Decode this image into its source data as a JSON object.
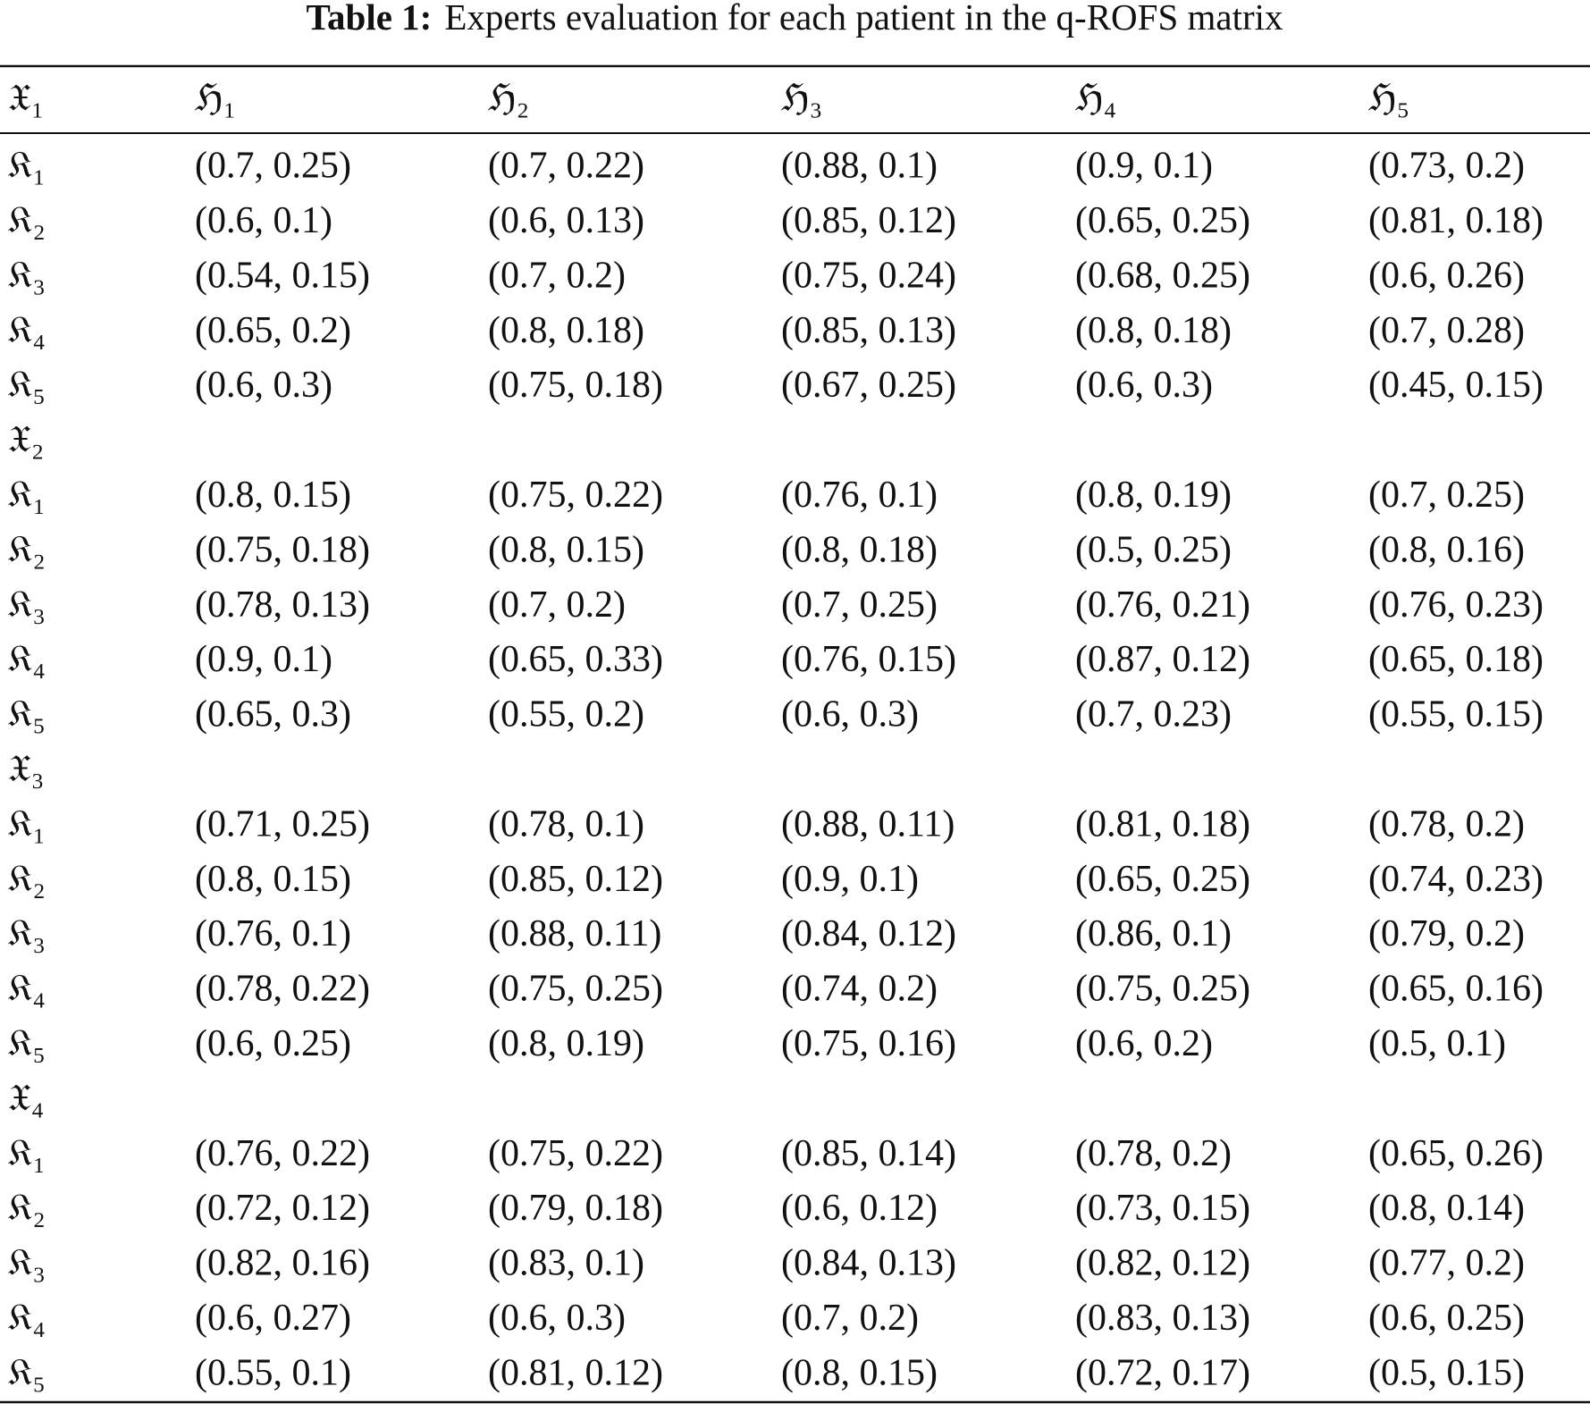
{
  "header": {
    "title_label": "Table 1:",
    "title": "Experts evaluation for each patient in the q-ROFS matrix"
  },
  "table": {
    "header": [
      "𝔛₁",
      "ℌ₁",
      "ℌ₂",
      "ℌ₃",
      "ℌ₄",
      "ℌ₅"
    ],
    "rows": [
      [
        "𝔎₁",
        "(0.7, 0.25)",
        "(0.7, 0.22)",
        "(0.88, 0.1)",
        "(0.9, 0.1)",
        "(0.73, 0.2)"
      ],
      [
        "𝔎₂",
        "(0.6, 0.1)",
        "(0.6, 0.13)",
        "(0.85, 0.12)",
        "(0.65, 0.25)",
        "(0.81, 0.18)"
      ],
      [
        "𝔎₃",
        "(0.54, 0.15)",
        "(0.7, 0.2)",
        "(0.75, 0.24)",
        "(0.68, 0.25)",
        "(0.6, 0.26)"
      ],
      [
        "𝔎₄",
        "(0.65, 0.2)",
        "(0.8, 0.18)",
        "(0.85, 0.13)",
        "(0.8, 0.18)",
        "(0.7, 0.28)"
      ],
      [
        "𝔎₅",
        "(0.6, 0.3)",
        "(0.75, 0.18)",
        "(0.67, 0.25)",
        "(0.6, 0.3)",
        "(0.45, 0.15)"
      ],
      [
        "𝔛₂"
      ],
      [
        "𝔎₁",
        "(0.8, 0.15)",
        "(0.75, 0.22)",
        "(0.76, 0.1)",
        "(0.8, 0.19)",
        "(0.7, 0.25)"
      ],
      [
        "𝔎₂",
        "(0.75, 0.18)",
        "(0.8, 0.15)",
        "(0.8, 0.18)",
        "(0.5, 0.25)",
        "(0.8, 0.16)"
      ],
      [
        "𝔎₃",
        "(0.78, 0.13)",
        "(0.7, 0.2)",
        "(0.7, 0.25)",
        "(0.76, 0.21)",
        "(0.76, 0.23)"
      ],
      [
        "𝔎₄",
        "(0.9, 0.1)",
        "(0.65, 0.33)",
        "(0.76, 0.15)",
        "(0.87, 0.12)",
        "(0.65, 0.18)"
      ],
      [
        "𝔎₅",
        "(0.65, 0.3)",
        "(0.55, 0.2)",
        "(0.6, 0.3)",
        "(0.7, 0.23)",
        "(0.55, 0.15)"
      ],
      [
        "𝔛₃"
      ],
      [
        "𝔎₁",
        "(0.71, 0.25)",
        "(0.78, 0.1)",
        "(0.88, 0.11)",
        "(0.81, 0.18)",
        "(0.78, 0.2)"
      ],
      [
        "𝔎₂",
        "(0.8, 0.15)",
        "(0.85, 0.12)",
        "(0.9, 0.1)",
        "(0.65, 0.25)",
        "(0.74, 0.23)"
      ],
      [
        "𝔎₃",
        "(0.76, 0.1)",
        "(0.88, 0.11)",
        "(0.84, 0.12)",
        "(0.86, 0.1)",
        "(0.79, 0.2)"
      ],
      [
        "𝔎₄",
        "(0.78, 0.22)",
        "(0.75, 0.25)",
        "(0.74, 0.2)",
        "(0.75, 0.25)",
        "(0.65, 0.16)"
      ],
      [
        "𝔎₅",
        "(0.6, 0.25)",
        "(0.8, 0.19)",
        "(0.75, 0.16)",
        "(0.6, 0.2)",
        "(0.5, 0.1)"
      ],
      [
        "𝔛₄"
      ],
      [
        "𝔎₁",
        "(0.76, 0.22)",
        "(0.75, 0.22)",
        "(0.85, 0.14)",
        "(0.78, 0.2)",
        "(0.65, 0.26)"
      ],
      [
        "𝔎₂",
        "(0.72, 0.12)",
        "(0.79, 0.18)",
        "(0.6, 0.12)",
        "(0.73, 0.15)",
        "(0.8, 0.14)"
      ],
      [
        "𝔎₃",
        "(0.82, 0.16)",
        "(0.83, 0.1)",
        "(0.84, 0.13)",
        "(0.82, 0.12)",
        "(0.77, 0.2)"
      ],
      [
        "𝔎₄",
        "(0.6, 0.27)",
        "(0.6, 0.3)",
        "(0.7, 0.2)",
        "(0.83, 0.13)",
        "(0.6, 0.25)"
      ],
      [
        "𝔎₅",
        "(0.55, 0.1)",
        "(0.81, 0.12)",
        "(0.8, 0.15)",
        "(0.72, 0.17)",
        "(0.5, 0.15)"
      ]
    ]
  }
}
